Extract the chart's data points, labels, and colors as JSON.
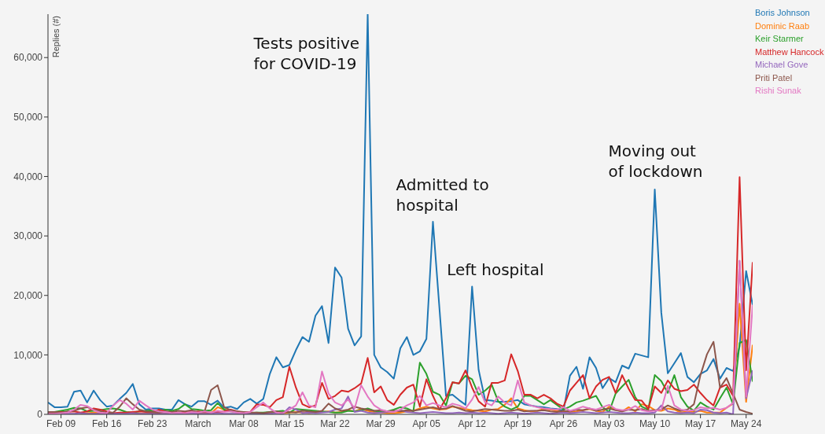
{
  "chart_data": {
    "type": "line",
    "ylabel": "Replies (#)",
    "x": [
      "--02-07",
      "--02-08",
      "--02-09",
      "--02-10",
      "--02-11",
      "--02-12",
      "--02-13",
      "--02-14",
      "--02-15",
      "--02-16",
      "--02-17",
      "--02-18",
      "--02-19",
      "--02-20",
      "--02-21",
      "--02-22",
      "--02-23",
      "--02-24",
      "--02-25",
      "--02-26",
      "--02-27",
      "--02-28",
      "--02-29",
      "--03-01",
      "--03-02",
      "--03-03",
      "--03-04",
      "--03-05",
      "--03-06",
      "--03-07",
      "--03-08",
      "--03-09",
      "--03-10",
      "--03-11",
      "--03-12",
      "--03-13",
      "--03-14",
      "--03-15",
      "--03-16",
      "--03-17",
      "--03-18",
      "--03-19",
      "--03-20",
      "--03-21",
      "--03-22",
      "--03-23",
      "--03-24",
      "--03-25",
      "--03-26",
      "--03-27",
      "--03-28",
      "--03-29",
      "--03-30",
      "--03-31",
      "--04-01",
      "--04-02",
      "--04-03",
      "--04-04",
      "--04-05",
      "--04-06",
      "--04-07",
      "--04-08",
      "--04-09",
      "--04-10",
      "--04-11",
      "--04-12",
      "--04-13",
      "--04-14",
      "--04-15",
      "--04-16",
      "--04-17",
      "--04-18",
      "--04-19",
      "--04-20",
      "--04-21",
      "--04-22",
      "--04-23",
      "--04-24",
      "--04-25",
      "--04-26",
      "--04-27",
      "--04-28",
      "--04-29",
      "--04-30",
      "--05-01",
      "--05-02",
      "--05-03",
      "--05-04",
      "--05-05",
      "--05-06",
      "--05-07",
      "--05-08",
      "--05-09",
      "--05-10",
      "--05-11",
      "--05-12",
      "--05-13",
      "--05-14",
      "--05-15",
      "--05-16",
      "--05-17",
      "--05-18",
      "--05-19",
      "--05-20",
      "--05-21",
      "--05-22",
      "--05-23",
      "--05-24",
      "--05-25"
    ],
    "series": [
      {
        "name": "Boris Johnson",
        "color": "#1f77b4",
        "values": [
          2000,
          1200,
          1200,
          1300,
          3800,
          4000,
          2000,
          4000,
          2400,
          1300,
          1500,
          2600,
          3600,
          5100,
          1700,
          800,
          1000,
          1000,
          800,
          800,
          2400,
          1700,
          1300,
          2200,
          2200,
          1600,
          2300,
          1100,
          1300,
          900,
          2000,
          2600,
          1800,
          2600,
          6800,
          9600,
          7900,
          8300,
          10800,
          13000,
          12200,
          16600,
          18200,
          12000,
          24700,
          23000,
          14400,
          11600,
          13100,
          67300,
          10000,
          7900,
          7100,
          6000,
          11100,
          13000,
          10000,
          10600,
          12700,
          32400,
          17800,
          3100,
          3300,
          2400,
          1600,
          21500,
          7500,
          2400,
          2300,
          2100,
          2100,
          2200,
          2400,
          1700,
          1500,
          1300,
          1200,
          1000,
          900,
          600,
          6500,
          8000,
          4300,
          9600,
          7800,
          4400,
          6100,
          5400,
          8200,
          7700,
          10200,
          9900,
          9600,
          37800,
          17100,
          6900,
          8600,
          10300,
          6300,
          5400,
          6800,
          7400,
          9300,
          6000,
          7800,
          7300,
          11400,
          24100,
          18400
        ]
      },
      {
        "name": "Dominic Raab",
        "color": "#ff7f0e",
        "values": [
          null,
          null,
          null,
          null,
          null,
          100,
          200,
          300,
          200,
          100,
          100,
          200,
          300,
          200,
          100,
          100,
          200,
          100,
          100,
          200,
          300,
          200,
          200,
          200,
          300,
          200,
          1200,
          800,
          600,
          300,
          200,
          200,
          100,
          100,
          200,
          300,
          200,
          300,
          400,
          300,
          200,
          300,
          400,
          500,
          300,
          400,
          700,
          500,
          900,
          600,
          400,
          300,
          200,
          200,
          300,
          500,
          600,
          1000,
          1300,
          1000,
          800,
          900,
          1300,
          1100,
          900,
          700,
          600,
          500,
          800,
          900,
          1600,
          2700,
          1000,
          700,
          500,
          600,
          900,
          800,
          600,
          500,
          400,
          500,
          700,
          900,
          600,
          400,
          1300,
          800,
          500,
          1200,
          500,
          1700,
          1400,
          700,
          600,
          1000,
          800,
          300,
          500,
          400,
          600,
          300,
          300,
          300,
          1100,
          1800,
          18600,
          2100,
          11700
        ]
      },
      {
        "name": "Keir Starmer",
        "color": "#2ca02c",
        "values": [
          300,
          400,
          600,
          800,
          1100,
          1000,
          500,
          600,
          700,
          900,
          1000,
          800,
          400,
          300,
          500,
          600,
          700,
          500,
          800,
          600,
          900,
          1700,
          900,
          800,
          600,
          700,
          1900,
          800,
          500,
          400,
          300,
          200,
          300,
          300,
          400,
          500,
          600,
          300,
          900,
          800,
          700,
          600,
          500,
          400,
          300,
          300,
          600,
          500,
          700,
          1000,
          600,
          400,
          500,
          800,
          1200,
          1000,
          500,
          8700,
          6800,
          3800,
          3300,
          1500,
          5400,
          5200,
          6500,
          5900,
          3300,
          4000,
          5000,
          2200,
          1300,
          800,
          1300,
          3100,
          3100,
          2400,
          1700,
          2400,
          1600,
          800,
          1300,
          2000,
          2300,
          2700,
          3100,
          1200,
          400,
          3500,
          4700,
          5800,
          2900,
          1300,
          800,
          6600,
          5600,
          3600,
          6600,
          2900,
          1300,
          600,
          2000,
          1300,
          800,
          2700,
          4500,
          1700,
          12000,
          12500,
          5500
        ]
      },
      {
        "name": "Matthew Hancock",
        "color": "#d62728",
        "values": [
          300,
          300,
          400,
          400,
          500,
          300,
          500,
          1000,
          800,
          500,
          200,
          300,
          300,
          400,
          500,
          400,
          300,
          800,
          500,
          200,
          200,
          300,
          400,
          500,
          400,
          300,
          400,
          500,
          800,
          500,
          300,
          400,
          1700,
          1600,
          1200,
          2400,
          2900,
          8000,
          4500,
          1700,
          1200,
          1500,
          5300,
          2600,
          3100,
          4000,
          3800,
          4400,
          5200,
          9500,
          3700,
          4700,
          2400,
          1600,
          3300,
          4500,
          5000,
          1300,
          5900,
          3100,
          800,
          2700,
          5400,
          5200,
          7400,
          4500,
          2200,
          1300,
          5300,
          5300,
          5700,
          10100,
          7300,
          3300,
          3300,
          2700,
          3300,
          2700,
          1800,
          1300,
          4000,
          5300,
          6600,
          2700,
          4700,
          5800,
          6300,
          3600,
          6600,
          4300,
          2400,
          2300,
          900,
          4700,
          3600,
          5700,
          4300,
          3900,
          4100,
          5000,
          3600,
          2400,
          1500,
          4500,
          5000,
          3100,
          39900,
          7400,
          25600
        ]
      },
      {
        "name": "Michael Gove",
        "color": "#9467bd",
        "values": [
          null,
          null,
          100,
          100,
          100,
          200,
          100,
          100,
          100,
          100,
          100,
          100,
          100,
          200,
          100,
          100,
          100,
          100,
          100,
          100,
          100,
          100,
          200,
          100,
          100,
          100,
          200,
          100,
          100,
          100,
          100,
          100,
          100,
          100,
          100,
          200,
          100,
          1200,
          800,
          200,
          300,
          200,
          300,
          400,
          800,
          1000,
          3000,
          400,
          600,
          300,
          200,
          300,
          400,
          500,
          700,
          400,
          300,
          200,
          300,
          400,
          300,
          200,
          200,
          300,
          200,
          300,
          200,
          300,
          200,
          100,
          200,
          300,
          200,
          100,
          200,
          300,
          200,
          100,
          200,
          300,
          200,
          300,
          400,
          300,
          200,
          300,
          400,
          300,
          200,
          200,
          300,
          200,
          200,
          300,
          1500,
          500,
          300,
          200,
          300,
          200,
          800,
          700,
          300,
          200,
          300,
          0,
          25800,
          2700,
          7400
        ]
      },
      {
        "name": "Priti Patel",
        "color": "#8c564b",
        "values": [
          400,
          400,
          300,
          500,
          600,
          1000,
          1200,
          800,
          500,
          300,
          300,
          1300,
          2700,
          1700,
          800,
          500,
          400,
          300,
          500,
          400,
          600,
          500,
          700,
          300,
          500,
          4100,
          4900,
          1200,
          700,
          500,
          400,
          300,
          300,
          200,
          400,
          500,
          300,
          400,
          300,
          600,
          500,
          400,
          600,
          1800,
          1000,
          600,
          800,
          1300,
          1000,
          800,
          600,
          700,
          500,
          600,
          500,
          700,
          600,
          800,
          1000,
          1200,
          900,
          1000,
          1400,
          1000,
          600,
          500,
          700,
          900,
          800,
          700,
          600,
          600,
          800,
          500,
          600,
          600,
          700,
          500,
          400,
          600,
          500,
          800,
          700,
          1000,
          600,
          800,
          1000,
          700,
          500,
          800,
          700,
          900,
          600,
          700,
          800,
          1500,
          1000,
          600,
          800,
          1700,
          6600,
          10100,
          12200,
          4500,
          6100,
          3500,
          800,
          400,
          100
        ]
      },
      {
        "name": "Rishi Sunak",
        "color": "#e377c2",
        "values": [
          100,
          100,
          200,
          300,
          800,
          1600,
          1400,
          700,
          300,
          200,
          1500,
          2400,
          1800,
          800,
          2300,
          1500,
          800,
          500,
          400,
          200,
          300,
          200,
          400,
          300,
          500,
          300,
          600,
          400,
          500,
          300,
          200,
          400,
          1200,
          2000,
          1000,
          300,
          200,
          800,
          1500,
          3700,
          1500,
          1200,
          7200,
          3500,
          2000,
          1500,
          2500,
          1000,
          4900,
          3000,
          1500,
          800,
          500,
          400,
          800,
          1500,
          2000,
          3100,
          1500,
          1900,
          1500,
          1200,
          1800,
          1500,
          1000,
          2500,
          4600,
          2000,
          1500,
          3000,
          2000,
          1500,
          5700,
          2000,
          1500,
          1200,
          1000,
          900,
          800,
          1200,
          600,
          900,
          1300,
          1000,
          800,
          1200,
          1600,
          900,
          700,
          800,
          1400,
          700,
          500,
          600,
          800,
          4800,
          1500,
          800,
          600,
          700,
          1200,
          1000,
          1100,
          800,
          1100,
          1900,
          25800,
          3000,
          18400
        ]
      }
    ],
    "xlim": [
      "--02-07",
      "--05-25"
    ],
    "xticks": [
      {
        "value": "--02-09",
        "label": "Feb 09"
      },
      {
        "value": "--02-16",
        "label": "Feb 16"
      },
      {
        "value": "--02-23",
        "label": "Feb 23"
      },
      {
        "value": "--03-01",
        "label": "March"
      },
      {
        "value": "--03-08",
        "label": "Mar 08"
      },
      {
        "value": "--03-15",
        "label": "Mar 15"
      },
      {
        "value": "--03-22",
        "label": "Mar 22"
      },
      {
        "value": "--03-29",
        "label": "Mar 29"
      },
      {
        "value": "--04-05",
        "label": "Apr 05"
      },
      {
        "value": "--04-12",
        "label": "Apr 12"
      },
      {
        "value": "--04-19",
        "label": "Apr 19"
      },
      {
        "value": "--04-26",
        "label": "Apr 26"
      },
      {
        "value": "--05-03",
        "label": "May 03"
      },
      {
        "value": "--05-10",
        "label": "May 10"
      },
      {
        "value": "--05-17",
        "label": "May 17"
      },
      {
        "value": "--05-24",
        "label": "May 24"
      }
    ],
    "ylim": [
      0,
      67300
    ],
    "yticks": [
      0,
      {
        "value": 10000,
        "label": "10,000"
      },
      {
        "value": 20000,
        "label": "20,000"
      },
      {
        "value": 30000,
        "label": "30,000"
      },
      {
        "value": 40000,
        "label": "40,000"
      },
      {
        "value": 50000,
        "label": "50,000"
      },
      {
        "value": 60000,
        "label": "60,000"
      }
    ],
    "annotations": [
      {
        "text": "Tests positive\nfor COVID-19",
        "x": "--03-27",
        "y": 67300
      },
      {
        "text": "Admitted to\nhospital",
        "x": "--04-06",
        "y": 32400
      },
      {
        "text": "Left hospital",
        "x": "--04-12",
        "y": 21500
      },
      {
        "text": "Moving out\nof lockdown",
        "x": "--05-10",
        "y": 37800
      }
    ],
    "grid": false,
    "legend": "top right",
    "marker": "none",
    "line_style": "solid"
  }
}
